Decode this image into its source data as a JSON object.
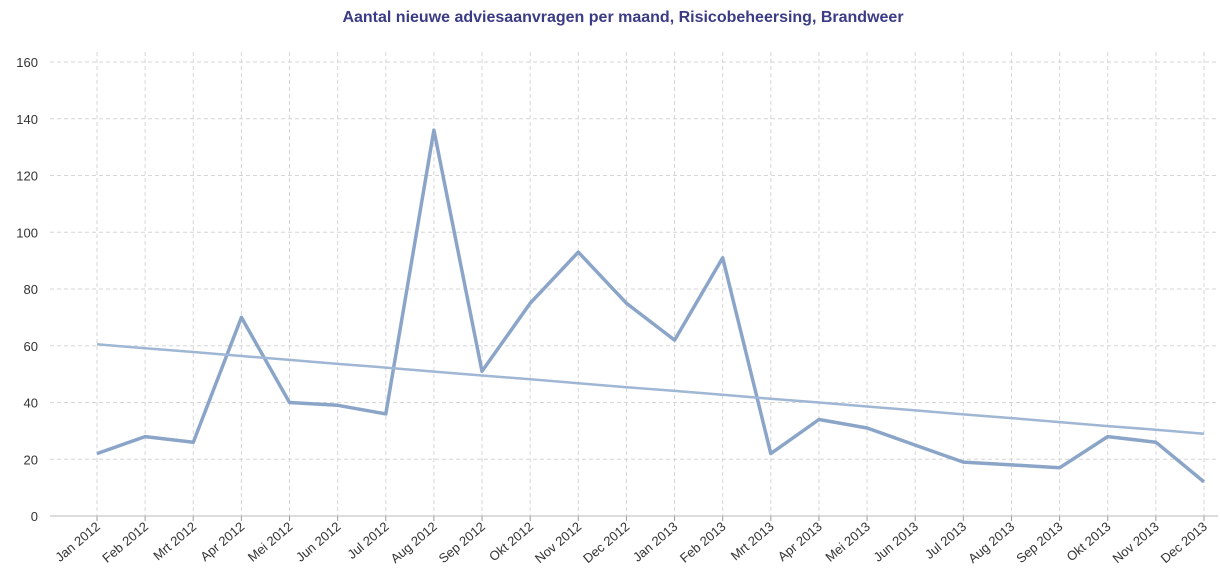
{
  "chart_data": {
    "type": "line",
    "title": "Aantal nieuwe adviesaanvragen per maand, Risicobeheersing, Brandweer",
    "categories": [
      "Jan 2012",
      "Feb 2012",
      "Mrt 2012",
      "Apr 2012",
      "Mei 2012",
      "Jun 2012",
      "Jul 2012",
      "Aug 2012",
      "Sep 2012",
      "Okt 2012",
      "Nov 2012",
      "Dec 2012",
      "Jan 2013",
      "Feb 2013",
      "Mrt 2013",
      "Apr 2013",
      "Mei 2013",
      "Jun 2013",
      "Jul 2013",
      "Aug 2013",
      "Sep 2013",
      "Okt 2013",
      "Nov 2013",
      "Dec 2013"
    ],
    "series": [
      {
        "color": "#8ba5c8",
        "values": [
          22,
          28,
          26,
          70,
          40,
          39,
          36,
          136,
          51,
          75,
          93,
          75,
          62,
          91,
          22,
          34,
          31,
          25,
          19,
          18,
          17,
          28,
          26,
          12
        ]
      },
      {
        "color": "#9fb6d4",
        "values": [
          60.5,
          59.1,
          57.8,
          56.4,
          55.0,
          53.6,
          52.3,
          50.9,
          49.5,
          48.2,
          46.8,
          45.4,
          44.1,
          42.7,
          41.3,
          40.0,
          38.6,
          37.2,
          35.8,
          34.5,
          33.1,
          31.7,
          30.4,
          29.0
        ]
      }
    ],
    "ylim": [
      0,
      160
    ],
    "yticks": [
      0,
      20,
      40,
      60,
      80,
      100,
      120,
      140,
      160
    ],
    "grid": true
  }
}
